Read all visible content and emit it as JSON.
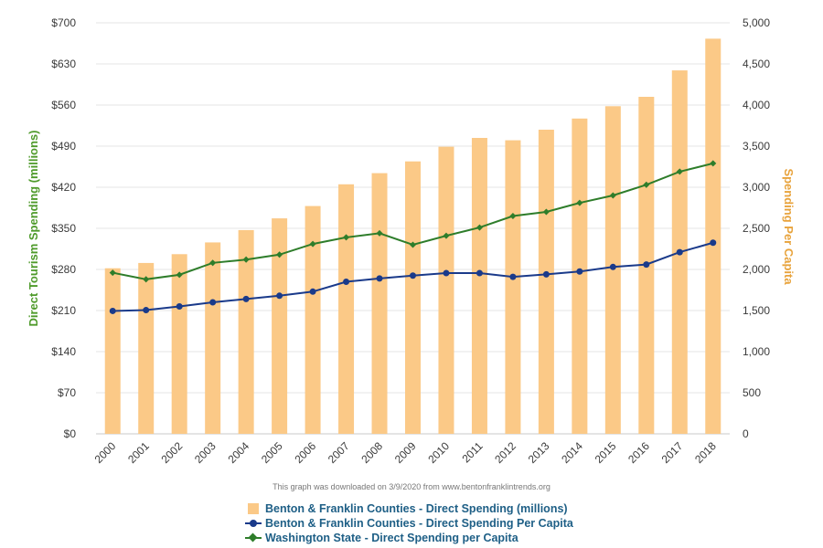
{
  "chart_data": {
    "type": "bar",
    "categories": [
      "2000",
      "2001",
      "2002",
      "2003",
      "2004",
      "2005",
      "2006",
      "2007",
      "2008",
      "2009",
      "2010",
      "2011",
      "2012",
      "2013",
      "2014",
      "2015",
      "2016",
      "2017",
      "2018"
    ],
    "left_axis": {
      "label": "Direct Tourism Spending (millions)",
      "ylim": [
        0,
        700
      ],
      "ticks": [
        "$0",
        "$70",
        "$140",
        "$210",
        "$280",
        "$350",
        "$420",
        "$490",
        "$560",
        "$630",
        "$700"
      ],
      "color": "#4e9a2a"
    },
    "right_axis": {
      "label": "Spending Per Capita",
      "ylim": [
        0,
        5000
      ],
      "ticks": [
        "0",
        "500",
        "1,000",
        "1,500",
        "2,000",
        "2,500",
        "3,000",
        "3,500",
        "4,000",
        "4,500",
        "5,000"
      ],
      "color": "#e8a33c"
    },
    "series": [
      {
        "name": "Benton & Franklin Counties - Direct Spending (millions)",
        "type": "bar",
        "axis": "left",
        "color": "#fbc987",
        "values": [
          282,
          291,
          306,
          326,
          347,
          367,
          388,
          425,
          444,
          464,
          489,
          504,
          500,
          518,
          537,
          558,
          574,
          619,
          673
        ]
      },
      {
        "name": "Benton & Franklin Counties - Direct Spending Per Capita",
        "type": "line",
        "axis": "right",
        "color": "#1a3a8a",
        "marker": "circle",
        "values": [
          1495,
          1505,
          1550,
          1600,
          1640,
          1680,
          1730,
          1850,
          1890,
          1925,
          1955,
          1955,
          1910,
          1940,
          1975,
          2030,
          2060,
          2210,
          2325
        ]
      },
      {
        "name": "Washington State - Direct Spending per Capita",
        "type": "line",
        "axis": "right",
        "color": "#2e7d2a",
        "marker": "diamond",
        "values": [
          1960,
          1880,
          1935,
          2080,
          2120,
          2180,
          2310,
          2390,
          2440,
          2300,
          2410,
          2510,
          2650,
          2700,
          2810,
          2900,
          3030,
          3190,
          3290
        ]
      }
    ],
    "grid": true,
    "legend_position": "bottom"
  },
  "note": "This graph was downloaded on 3/9/2020 from www.bentonfranklintrends.org"
}
